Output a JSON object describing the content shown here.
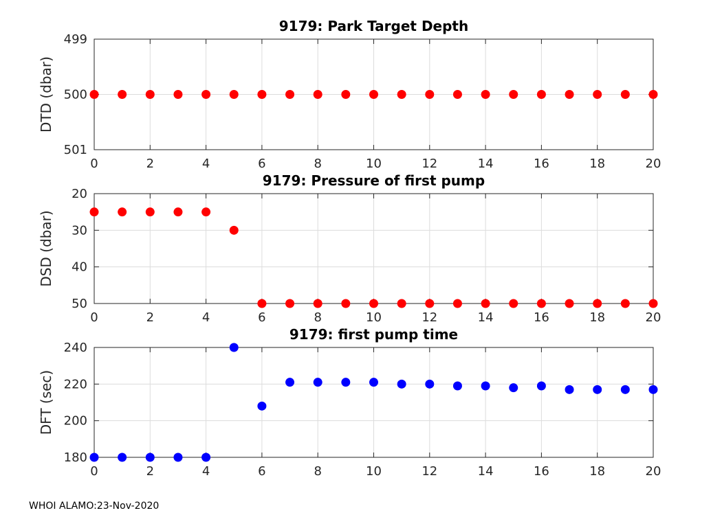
{
  "chart_data": [
    {
      "type": "scatter",
      "title": "9179: Park Target Depth",
      "xlabel": "",
      "ylabel": "DTD (dbar)",
      "xlim": [
        0,
        20
      ],
      "ylim": [
        499,
        501
      ],
      "y_reversed": true,
      "x_ticks": [
        0,
        2,
        4,
        6,
        8,
        10,
        12,
        14,
        16,
        18,
        20
      ],
      "y_ticks": [
        499,
        500,
        501
      ],
      "grid": true,
      "marker_color": "#ff0000",
      "x": [
        0,
        1,
        2,
        3,
        4,
        5,
        6,
        7,
        8,
        9,
        10,
        11,
        12,
        13,
        14,
        15,
        16,
        17,
        18,
        19,
        20
      ],
      "y": [
        500,
        500,
        500,
        500,
        500,
        500,
        500,
        500,
        500,
        500,
        500,
        500,
        500,
        500,
        500,
        500,
        500,
        500,
        500,
        500,
        500
      ]
    },
    {
      "type": "scatter",
      "title": "9179: Pressure of first pump",
      "xlabel": "",
      "ylabel": "DSD (dbar)",
      "xlim": [
        0,
        20
      ],
      "ylim": [
        20,
        50
      ],
      "y_reversed": true,
      "x_ticks": [
        0,
        2,
        4,
        6,
        8,
        10,
        12,
        14,
        16,
        18,
        20
      ],
      "y_ticks": [
        20,
        30,
        40,
        50
      ],
      "grid": true,
      "marker_color": "#ff0000",
      "x": [
        0,
        1,
        2,
        3,
        4,
        5,
        6,
        7,
        8,
        9,
        10,
        11,
        12,
        13,
        14,
        15,
        16,
        17,
        18,
        19,
        20
      ],
      "y": [
        25,
        25,
        25,
        25,
        25,
        30,
        50,
        50,
        50,
        50,
        50,
        50,
        50,
        50,
        50,
        50,
        50,
        50,
        50,
        50,
        50
      ]
    },
    {
      "type": "scatter",
      "title": "9179: first pump time",
      "xlabel": "",
      "ylabel": "DFT (sec)",
      "xlim": [
        0,
        20
      ],
      "ylim": [
        180,
        240
      ],
      "y_reversed": false,
      "x_ticks": [
        0,
        2,
        4,
        6,
        8,
        10,
        12,
        14,
        16,
        18,
        20
      ],
      "y_ticks": [
        180,
        200,
        220,
        240
      ],
      "grid": true,
      "marker_color": "#0000ff",
      "x": [
        0,
        1,
        2,
        3,
        4,
        5,
        6,
        7,
        8,
        9,
        10,
        11,
        12,
        13,
        14,
        15,
        16,
        17,
        18,
        19,
        20
      ],
      "y": [
        180,
        180,
        180,
        180,
        180,
        240,
        208,
        221,
        221,
        221,
        221,
        220,
        220,
        219,
        219,
        218,
        219,
        217,
        217,
        217,
        217
      ]
    }
  ],
  "footer": "WHOI ALAMO:23-Nov-2020"
}
